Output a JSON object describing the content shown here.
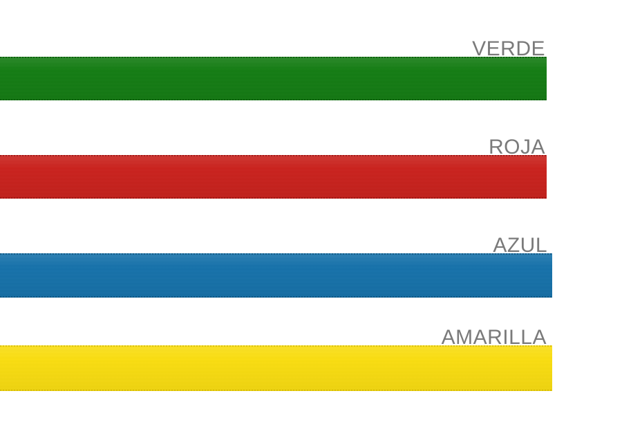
{
  "page": {
    "background_color": "#ffffff",
    "label_color": "#7a7a7a"
  },
  "ribbons": [
    {
      "id": "verde",
      "label": "VERDE",
      "color": "#117c10",
      "edge_color": "#0b5a0b"
    },
    {
      "id": "roja",
      "label": "ROJA",
      "color": "#cb1f1a",
      "edge_color": "#971310"
    },
    {
      "id": "azul",
      "label": "AZUL",
      "color": "#1371ab",
      "edge_color": "#0d537e"
    },
    {
      "id": "amarilla",
      "label": "AMARILLA",
      "color": "#fcdf0d",
      "edge_color": "#d3b908"
    }
  ]
}
